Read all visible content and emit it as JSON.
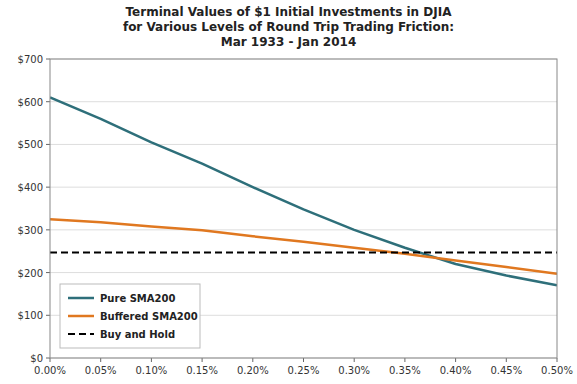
{
  "chart_data": {
    "type": "line",
    "title": "Terminal Values of $1 Initial Investments in DJIA\nfor Various Levels of Round Trip Trading Friction:\nMar 1933 - Jan 2014",
    "series": [
      {
        "name": "Pure SMA200",
        "color": "#2E6F7A",
        "line_style": "solid",
        "x": [
          0.0,
          0.0005,
          0.001,
          0.0015,
          0.002,
          0.0025,
          0.003,
          0.0035,
          0.004,
          0.0045,
          0.005
        ],
        "values": [
          610,
          560,
          505,
          455,
          400,
          348,
          300,
          258,
          220,
          193,
          170
        ]
      },
      {
        "name": "Buffered SMA200",
        "color": "#E07820",
        "line_style": "solid",
        "x": [
          0.0,
          0.0005,
          0.001,
          0.0015,
          0.002,
          0.0025,
          0.003,
          0.0035,
          0.004,
          0.0045,
          0.005
        ],
        "values": [
          325,
          318,
          308,
          299,
          285,
          272,
          258,
          244,
          228,
          213,
          197
        ]
      },
      {
        "name": "Buy and Hold",
        "color": "#000000",
        "type": "hline",
        "line_style": "dashed",
        "values": [
          247
        ]
      }
    ],
    "xlim": [
      0.0,
      0.005
    ],
    "ylim": [
      0,
      700
    ],
    "xticks": [
      {
        "value": 0.0,
        "label": "0.00%"
      },
      {
        "value": 0.0005,
        "label": "0.05%"
      },
      {
        "value": 0.001,
        "label": "0.10%"
      },
      {
        "value": 0.0015,
        "label": "0.15%"
      },
      {
        "value": 0.002,
        "label": "0.20%"
      },
      {
        "value": 0.0025,
        "label": "0.25%"
      },
      {
        "value": 0.003,
        "label": "0.30%"
      },
      {
        "value": 0.0035,
        "label": "0.35%"
      },
      {
        "value": 0.004,
        "label": "0.40%"
      },
      {
        "value": 0.0045,
        "label": "0.45%"
      },
      {
        "value": 0.005,
        "label": "0.50%"
      }
    ],
    "yticks": [
      {
        "value": 0,
        "label": "$0"
      },
      {
        "value": 100,
        "label": "$100"
      },
      {
        "value": 200,
        "label": "$200"
      },
      {
        "value": 300,
        "label": "$300"
      },
      {
        "value": 400,
        "label": "$400"
      },
      {
        "value": 500,
        "label": "$500"
      },
      {
        "value": 600,
        "label": "$600"
      },
      {
        "value": 700,
        "label": "$700"
      }
    ],
    "grid": true,
    "legend": "lower left"
  }
}
